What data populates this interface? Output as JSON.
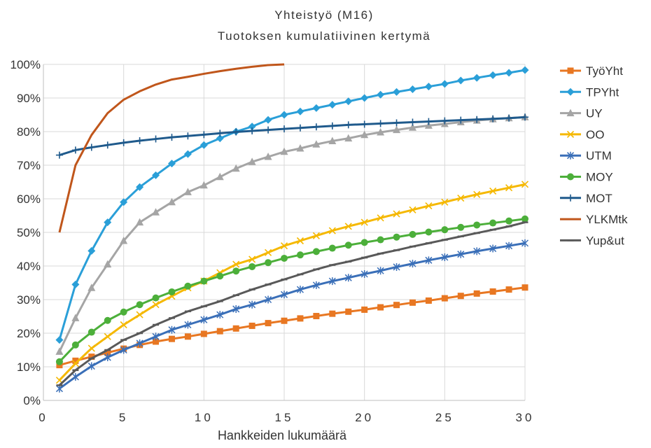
{
  "chart_data": {
    "type": "line",
    "title": "Yhteistyö (M16)",
    "subtitle": "Tuotoksen kumulatiivinen kertymä",
    "xlabel": "Hankkeiden lukumäärä",
    "ylabel": "",
    "xlim": [
      0,
      30
    ],
    "ylim": [
      0,
      100
    ],
    "x_ticks": [
      0,
      5,
      10,
      15,
      20,
      25,
      30
    ],
    "x_tick_labels": [
      "0",
      "5",
      "10",
      "15",
      "20",
      "25",
      "30"
    ],
    "y_ticks": [
      0,
      10,
      20,
      30,
      40,
      50,
      60,
      70,
      80,
      90,
      100
    ],
    "y_tick_labels": [
      "0%",
      "10%",
      "20%",
      "30%",
      "40%",
      "50%",
      "60%",
      "70%",
      "80%",
      "90%",
      "100%"
    ],
    "grid": true,
    "legend_position": "right",
    "series": [
      {
        "name": "TyöYht",
        "color": "#e87722",
        "marker": "square",
        "x": [
          1,
          2,
          3,
          4,
          5,
          6,
          7,
          8,
          9,
          10,
          11,
          12,
          13,
          14,
          15,
          16,
          17,
          18,
          19,
          20,
          21,
          22,
          23,
          24,
          25,
          26,
          27,
          28,
          29,
          30
        ],
        "values": [
          10.5,
          11.8,
          13.0,
          14.2,
          15.4,
          16.5,
          17.5,
          18.3,
          19.0,
          19.8,
          20.6,
          21.4,
          22.2,
          23.0,
          23.7,
          24.4,
          25.1,
          25.8,
          26.4,
          27.0,
          27.7,
          28.4,
          29.1,
          29.7,
          30.4,
          31.1,
          31.8,
          32.4,
          33.0,
          33.6
        ]
      },
      {
        "name": "TPYht",
        "color": "#2a9fd8",
        "marker": "diamond",
        "x": [
          1,
          2,
          3,
          4,
          5,
          6,
          7,
          8,
          9,
          10,
          11,
          12,
          13,
          14,
          15,
          16,
          17,
          18,
          19,
          20,
          21,
          22,
          23,
          24,
          25,
          26,
          27,
          28,
          29,
          30
        ],
        "values": [
          18,
          34.5,
          44.5,
          53,
          59,
          63.5,
          67,
          70.5,
          73.3,
          76,
          78,
          80,
          81.5,
          83.5,
          85,
          86,
          87,
          88,
          89,
          90,
          91,
          91.8,
          92.6,
          93.4,
          94.2,
          95.2,
          96,
          96.8,
          97.5,
          98.3
        ]
      },
      {
        "name": "UY",
        "color": "#a5a5a5",
        "marker": "triangle",
        "x": [
          1,
          2,
          3,
          4,
          5,
          6,
          7,
          8,
          9,
          10,
          11,
          12,
          13,
          14,
          15,
          16,
          17,
          18,
          19,
          20,
          21,
          22,
          23,
          24,
          25,
          26,
          27,
          28,
          29,
          30
        ],
        "values": [
          14.5,
          24.5,
          33.5,
          40.5,
          47.5,
          53,
          56,
          59,
          62,
          64,
          66.5,
          69,
          71,
          72.5,
          74,
          75,
          76.2,
          77.2,
          78,
          79,
          79.8,
          80.5,
          81.2,
          81.8,
          82.3,
          82.8,
          83.3,
          83.7,
          84,
          84.3
        ]
      },
      {
        "name": "OO",
        "color": "#f5b800",
        "marker": "x",
        "x": [
          1,
          2,
          3,
          4,
          5,
          6,
          7,
          8,
          9,
          10,
          11,
          12,
          13,
          14,
          15,
          16,
          17,
          18,
          19,
          20,
          21,
          22,
          23,
          24,
          25,
          26,
          27,
          28,
          29,
          30
        ],
        "values": [
          6,
          11,
          15.5,
          19,
          22.5,
          25.5,
          28.5,
          31,
          33.5,
          35.5,
          38,
          40.5,
          42,
          44,
          46,
          47.5,
          49,
          50.5,
          51.8,
          53,
          54.3,
          55.5,
          56.7,
          57.9,
          59,
          60.2,
          61.3,
          62.3,
          63.3,
          64.3
        ]
      },
      {
        "name": "UTM",
        "color": "#3a6fb8",
        "marker": "asterisk",
        "x": [
          1,
          2,
          3,
          4,
          5,
          6,
          7,
          8,
          9,
          10,
          11,
          12,
          13,
          14,
          15,
          16,
          17,
          18,
          19,
          20,
          21,
          22,
          23,
          24,
          25,
          26,
          27,
          28,
          29,
          30
        ],
        "values": [
          3.5,
          7,
          10.2,
          12.8,
          15,
          17,
          19,
          21,
          22.5,
          24,
          25.5,
          27.2,
          28.5,
          30,
          31.5,
          33,
          34.3,
          35.5,
          36.5,
          37.6,
          38.6,
          39.7,
          40.7,
          41.7,
          42.6,
          43.5,
          44.4,
          45.2,
          46,
          46.8
        ]
      },
      {
        "name": "MOY",
        "color": "#4caf3a",
        "marker": "circle",
        "x": [
          1,
          2,
          3,
          4,
          5,
          6,
          7,
          8,
          9,
          10,
          11,
          12,
          13,
          14,
          15,
          16,
          17,
          18,
          19,
          20,
          21,
          22,
          23,
          24,
          25,
          26,
          27,
          28,
          29,
          30
        ],
        "values": [
          11.5,
          16.5,
          20.3,
          23.8,
          26.3,
          28.5,
          30.5,
          32.3,
          34,
          35.5,
          37,
          38.5,
          39.8,
          41,
          42.3,
          43.3,
          44.3,
          45.3,
          46.2,
          47,
          47.8,
          48.6,
          49.4,
          50.1,
          50.8,
          51.5,
          52.2,
          52.8,
          53.4,
          54
        ]
      },
      {
        "name": "MOT",
        "color": "#1f5a8c",
        "marker": "plus",
        "x": [
          1,
          2,
          3,
          4,
          5,
          6,
          7,
          8,
          9,
          10,
          11,
          12,
          13,
          14,
          15,
          16,
          17,
          18,
          19,
          20,
          21,
          22,
          23,
          24,
          25,
          26,
          27,
          28,
          29,
          30
        ],
        "values": [
          73,
          74.5,
          75.3,
          76,
          76.7,
          77.3,
          77.8,
          78.3,
          78.7,
          79.1,
          79.5,
          79.9,
          80.2,
          80.5,
          80.8,
          81.1,
          81.4,
          81.7,
          82,
          82.2,
          82.4,
          82.6,
          82.8,
          83,
          83.2,
          83.4,
          83.6,
          83.8,
          84,
          84.3
        ]
      },
      {
        "name": "YLKMtk",
        "color": "#c0561b",
        "marker": "none",
        "x": [
          1,
          2,
          3,
          4,
          5,
          6,
          7,
          8,
          9,
          10,
          11,
          12,
          13,
          14,
          15
        ],
        "values": [
          50,
          70,
          79,
          85.5,
          89.5,
          92,
          94,
          95.5,
          96.3,
          97.2,
          98,
          98.7,
          99.3,
          99.8,
          100
        ]
      },
      {
        "name": "Yup&ut",
        "color": "#595959",
        "marker": "dash",
        "x": [
          1,
          2,
          3,
          4,
          5,
          6,
          7,
          8,
          9,
          10,
          11,
          12,
          13,
          14,
          15,
          16,
          17,
          18,
          19,
          20,
          21,
          22,
          23,
          24,
          25,
          26,
          27,
          28,
          29,
          30
        ],
        "values": [
          4.5,
          9,
          12.5,
          15,
          18,
          20,
          22.5,
          24.5,
          26.5,
          28,
          29.5,
          31.3,
          33,
          34.5,
          36,
          37.5,
          39,
          40.3,
          41.3,
          42.5,
          43.7,
          44.7,
          45.8,
          46.8,
          47.8,
          48.8,
          49.8,
          50.8,
          51.8,
          53
        ]
      }
    ]
  }
}
